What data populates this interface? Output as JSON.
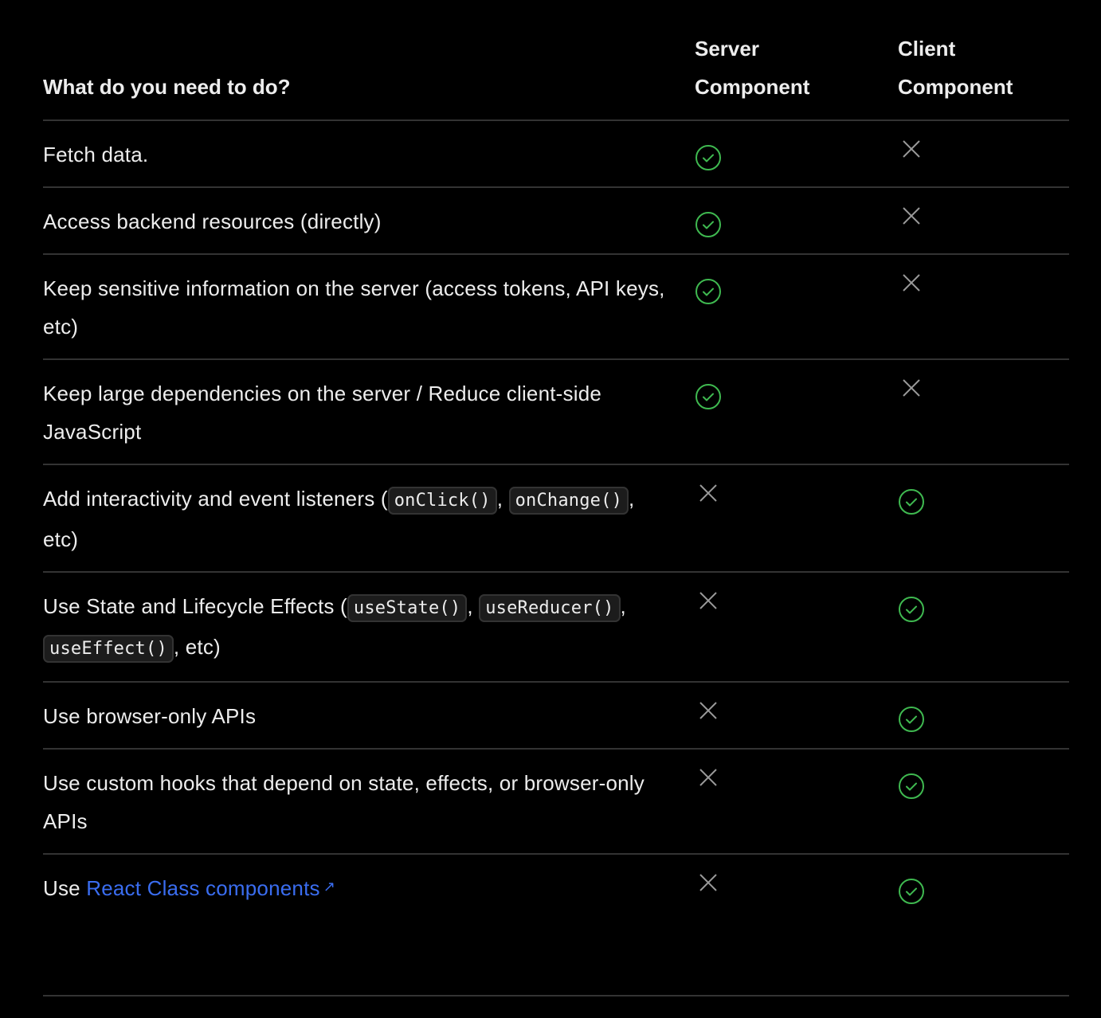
{
  "header": {
    "task": "What do you need to do?",
    "server": "Server Component",
    "client": "Client Component"
  },
  "colors": {
    "check": "#3fb950",
    "cross": "#9a9a9a",
    "link": "#3a6df0"
  },
  "rows": [
    {
      "parts": [
        {
          "t": "text",
          "v": "Fetch data."
        }
      ],
      "server": true,
      "client": false
    },
    {
      "parts": [
        {
          "t": "text",
          "v": "Access backend resources (directly)"
        }
      ],
      "server": true,
      "client": false
    },
    {
      "parts": [
        {
          "t": "text",
          "v": "Keep sensitive information on the server (access tokens, API keys, etc)"
        }
      ],
      "server": true,
      "client": false
    },
    {
      "parts": [
        {
          "t": "text",
          "v": "Keep large dependencies on the server / Reduce client-side JavaScript"
        }
      ],
      "server": true,
      "client": false
    },
    {
      "parts": [
        {
          "t": "text",
          "v": "Add interactivity and event listeners ("
        },
        {
          "t": "code",
          "v": "onClick()"
        },
        {
          "t": "text",
          "v": ", "
        },
        {
          "t": "code",
          "v": "onChange()"
        },
        {
          "t": "text",
          "v": ", etc)"
        }
      ],
      "server": false,
      "client": true
    },
    {
      "parts": [
        {
          "t": "text",
          "v": "Use State and Lifecycle Effects ("
        },
        {
          "t": "code",
          "v": "useState()"
        },
        {
          "t": "text",
          "v": ", "
        },
        {
          "t": "code",
          "v": "useReducer()"
        },
        {
          "t": "text",
          "v": ", "
        },
        {
          "t": "code",
          "v": "useEffect()"
        },
        {
          "t": "text",
          "v": ", etc)"
        }
      ],
      "server": false,
      "client": true
    },
    {
      "parts": [
        {
          "t": "text",
          "v": "Use browser-only APIs"
        }
      ],
      "server": false,
      "client": true
    },
    {
      "parts": [
        {
          "t": "text",
          "v": "Use custom hooks that depend on state, effects, or browser-only APIs"
        }
      ],
      "server": false,
      "client": true
    },
    {
      "parts": [
        {
          "t": "text",
          "v": "Use "
        },
        {
          "t": "link",
          "v": "React Class components"
        }
      ],
      "server": false,
      "client": true
    }
  ]
}
